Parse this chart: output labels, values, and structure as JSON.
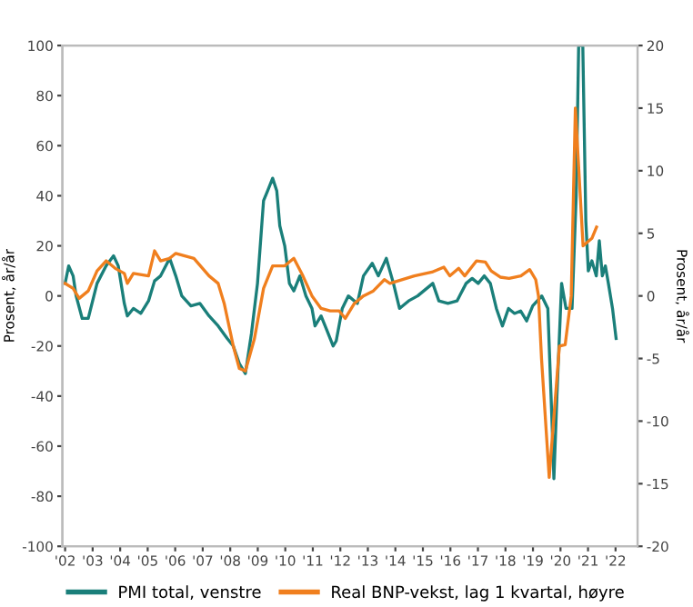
{
  "chart_data": {
    "type": "line",
    "ylabel": "Prosent, år/år",
    "y2label": "Prosent, år/år",
    "xlim": [
      2001.9,
      2022.8
    ],
    "xticks": [
      {
        "value": 2002,
        "label": "'02"
      },
      {
        "value": 2003,
        "label": "'03"
      },
      {
        "value": 2004,
        "label": "'04"
      },
      {
        "value": 2005,
        "label": "'05"
      },
      {
        "value": 2006,
        "label": "'06"
      },
      {
        "value": 2007,
        "label": "'07"
      },
      {
        "value": 2008,
        "label": "'08"
      },
      {
        "value": 2009,
        "label": "'09"
      },
      {
        "value": 2010,
        "label": "'10"
      },
      {
        "value": 2011,
        "label": "'11"
      },
      {
        "value": 2012,
        "label": "'12"
      },
      {
        "value": 2013,
        "label": "'13"
      },
      {
        "value": 2014,
        "label": "'14"
      },
      {
        "value": 2015,
        "label": "'15"
      },
      {
        "value": 2016,
        "label": "'16"
      },
      {
        "value": 2017,
        "label": "'17"
      },
      {
        "value": 2018,
        "label": "'18"
      },
      {
        "value": 2019,
        "label": "'19"
      },
      {
        "value": 2020,
        "label": "'20"
      },
      {
        "value": 2021,
        "label": "'21"
      },
      {
        "value": 2022,
        "label": "'22"
      }
    ],
    "ylim": [
      -100,
      100
    ],
    "yticks": [
      -100,
      -80,
      -60,
      -40,
      -20,
      0,
      20,
      40,
      60,
      80,
      100
    ],
    "y2lim": [
      -20,
      20
    ],
    "y2ticks": [
      -20,
      -15,
      -10,
      -5,
      0,
      5,
      10,
      15,
      20
    ],
    "grid": false,
    "legend": "bottom",
    "marker": "none",
    "line_style": "solid",
    "series": [
      {
        "name": "PMI total, venstre",
        "color": "#1a7f7a",
        "axis": "y",
        "x": [
          2002.0,
          2002.13,
          2002.29,
          2002.4,
          2002.62,
          2002.84,
          2003.16,
          2003.49,
          2003.76,
          2003.93,
          2004.15,
          2004.26,
          2004.48,
          2004.75,
          2005.03,
          2005.25,
          2005.47,
          2005.8,
          2006.02,
          2006.24,
          2006.57,
          2006.9,
          2007.23,
          2007.56,
          2007.89,
          2008.11,
          2008.33,
          2008.55,
          2008.77,
          2008.99,
          2009.21,
          2009.36,
          2009.54,
          2009.69,
          2009.8,
          2009.98,
          2010.15,
          2010.31,
          2010.53,
          2010.75,
          2010.97,
          2011.08,
          2011.3,
          2011.52,
          2011.74,
          2011.85,
          2012.07,
          2012.29,
          2012.62,
          2012.84,
          2013.16,
          2013.38,
          2013.67,
          2013.93,
          2014.15,
          2014.48,
          2014.81,
          2015.14,
          2015.36,
          2015.58,
          2015.91,
          2016.24,
          2016.57,
          2016.79,
          2017.01,
          2017.23,
          2017.45,
          2017.67,
          2017.89,
          2018.11,
          2018.33,
          2018.55,
          2018.77,
          2018.99,
          2019.32,
          2019.54,
          2019.69,
          2019.76,
          2019.87,
          2020.04,
          2020.2,
          2020.42,
          2020.57,
          2020.66,
          2020.81,
          2020.92,
          2021.01,
          2021.14,
          2021.3,
          2021.41,
          2021.52,
          2021.63,
          2021.74,
          2021.89,
          2022.02
        ],
        "values": [
          5,
          12,
          8,
          0,
          -9,
          -9,
          5,
          12,
          16,
          12,
          -3,
          -8,
          -5,
          -7,
          -2,
          6,
          8,
          15,
          8,
          0,
          -4,
          -3,
          -8,
          -12,
          -17,
          -20,
          -27,
          -31,
          -15,
          5,
          38,
          42,
          47,
          42,
          28,
          20,
          5,
          2,
          8,
          0,
          -5,
          -12,
          -8,
          -14,
          -20,
          -18,
          -5,
          0,
          -3,
          8,
          13,
          8,
          15,
          5,
          -5,
          -2,
          0,
          3,
          5,
          -2,
          -3,
          -2,
          5,
          7,
          5,
          8,
          5,
          -5,
          -12,
          -5,
          -7,
          -6,
          -10,
          -4,
          0,
          -5,
          -50,
          -73,
          -40,
          5,
          -5,
          -5,
          40,
          100,
          100,
          30,
          10,
          14,
          8,
          22,
          8,
          12,
          5,
          -5,
          -17
        ]
      },
      {
        "name": "Real BNP-vekst, lag 1 kvartal, høyre",
        "color": "#f07f1e",
        "axis": "y2",
        "x": [
          2002.0,
          2002.29,
          2002.51,
          2002.84,
          2003.16,
          2003.49,
          2003.82,
          2004.15,
          2004.26,
          2004.48,
          2005.03,
          2005.25,
          2005.47,
          2005.8,
          2006.02,
          2006.68,
          2007.23,
          2007.56,
          2007.78,
          2008.11,
          2008.33,
          2008.55,
          2008.88,
          2009.21,
          2009.54,
          2009.98,
          2010.31,
          2010.64,
          2010.97,
          2011.3,
          2011.63,
          2011.96,
          2012.18,
          2012.51,
          2012.84,
          2013.2,
          2013.6,
          2013.8,
          2014.69,
          2015.33,
          2015.76,
          2015.98,
          2016.3,
          2016.52,
          2016.95,
          2017.27,
          2017.48,
          2017.81,
          2018.13,
          2018.56,
          2018.88,
          2019.1,
          2019.2,
          2019.31,
          2019.59,
          2019.96,
          2020.17,
          2020.39,
          2020.54,
          2020.82,
          2021.14,
          2021.31
        ],
        "values": [
          1.0,
          0.6,
          -0.2,
          0.4,
          2,
          2.8,
          2.2,
          1.8,
          1.0,
          1.8,
          1.6,
          3.6,
          2.8,
          3,
          3.4,
          3,
          1.6,
          1.0,
          -0.6,
          -4,
          -5.8,
          -6,
          -3.4,
          0.6,
          2.4,
          2.4,
          3,
          1.6,
          0,
          -1,
          -1.2,
          -1.2,
          -1.8,
          -0.6,
          0,
          0.4,
          1.3,
          1.0,
          1.6,
          1.9,
          2.3,
          1.6,
          2.2,
          1.6,
          2.8,
          2.7,
          2.0,
          1.5,
          1.4,
          1.6,
          2.1,
          1.3,
          0,
          -5,
          -14.5,
          -4,
          -3.9,
          0,
          15,
          4.0,
          4.6,
          5.5
        ]
      }
    ]
  }
}
